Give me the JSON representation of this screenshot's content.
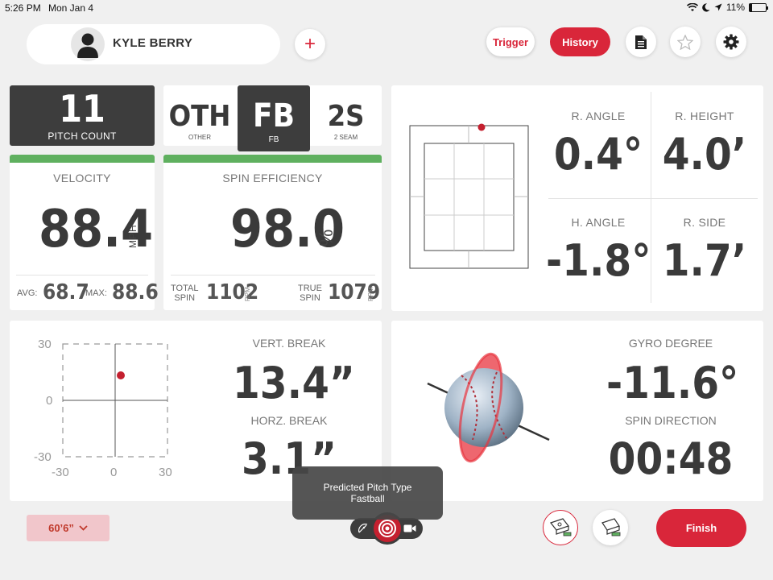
{
  "status_bar": {
    "time": "5:26 PM",
    "date": "Mon Jan 4",
    "battery": "11%"
  },
  "header": {
    "user_name": "KYLE BERRY",
    "add_label": "+",
    "trigger_label": "Trigger",
    "history_label": "History"
  },
  "pitch_count": {
    "value": "11",
    "label": "PITCH COUNT"
  },
  "pitch_types": [
    {
      "code": "OTH",
      "label": "OTHER"
    },
    {
      "code": "FB",
      "label": "FB"
    },
    {
      "code": "2S",
      "label": "2 SEAM"
    }
  ],
  "velocity": {
    "title": "VELOCITY",
    "value": "88.4",
    "unit": "MPH",
    "avg_label": "AVG:",
    "avg_value": "68.7",
    "max_label": "MAX:",
    "max_value": "88.6"
  },
  "spin_efficiency": {
    "title": "SPIN EFFICIENCY",
    "value": "98.0",
    "unit": "%",
    "total_label_1": "TOTAL",
    "total_label_2": "SPIN",
    "total_value": "1102",
    "total_unit": "RPM",
    "true_label_1": "TRUE",
    "true_label_2": "SPIN",
    "true_value": "1079",
    "true_unit": "RPM"
  },
  "release": {
    "r_angle_label": "R. ANGLE",
    "r_angle_value": "0.4°",
    "r_height_label": "R. HEIGHT",
    "r_height_value": "4.0’",
    "h_angle_label": "H. ANGLE",
    "h_angle_value": "-1.8°",
    "r_side_label": "R. SIDE",
    "r_side_value": "1.7’"
  },
  "break": {
    "axis_top": "30",
    "axis_mid": "0",
    "axis_bottom": "-30",
    "axis_x_left": "-30",
    "axis_x_mid": "0",
    "axis_x_right": "30",
    "vert_label": "VERT. BREAK",
    "vert_value": "13.4”",
    "horz_label": "HORZ. BREAK",
    "horz_value": "3.1”"
  },
  "gyro": {
    "gyro_label": "GYRO DEGREE",
    "gyro_value": "-11.6°",
    "spin_dir_label": "SPIN DIRECTION",
    "spin_dir_value": "00:48"
  },
  "bottom_bar": {
    "distance_label": "60’6”",
    "toast_line1": "Predicted Pitch Type",
    "toast_line2": "Fastball",
    "finish_label": "Finish"
  },
  "colors": {
    "accent": "#d9263a",
    "dark": "#3d3d3d",
    "good": "#5fb05f",
    "background": "#f0f0f0"
  },
  "icons": [
    "wifi-icon",
    "moon-icon",
    "location-icon",
    "battery-icon",
    "user-avatar-icon",
    "plus-icon",
    "document-icon",
    "star-icon",
    "gear-icon",
    "chevron-down-icon",
    "radar-icon",
    "record-icon",
    "video-icon",
    "device-icon"
  ]
}
